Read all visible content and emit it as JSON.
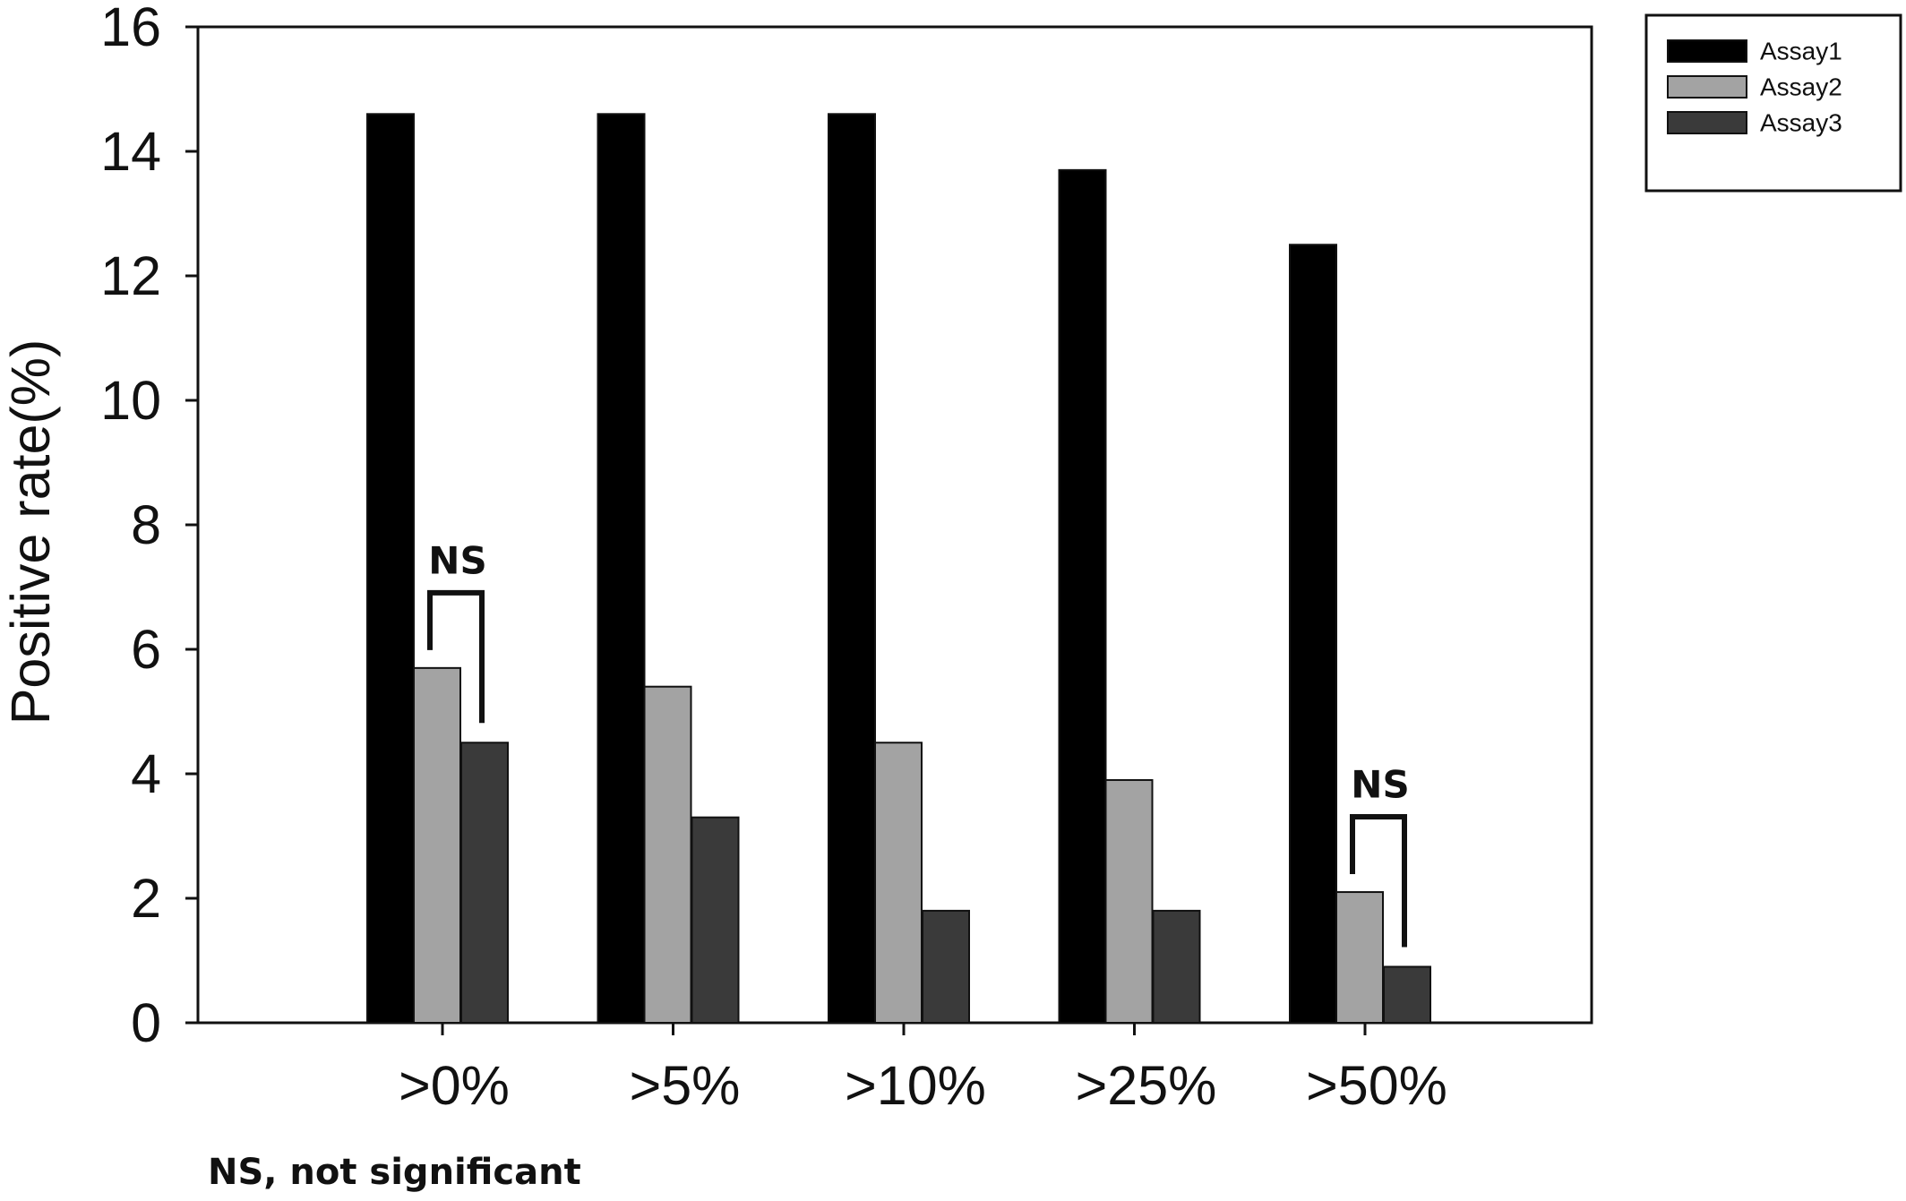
{
  "chart_data": {
    "type": "bar",
    "title": "",
    "xlabel": "",
    "ylabel": "Positive rate(%)",
    "ylim": [
      0,
      16
    ],
    "yticks": [
      0,
      2,
      4,
      6,
      8,
      10,
      12,
      14,
      16
    ],
    "categories": [
      ">0%",
      ">5%",
      ">10%",
      ">25%",
      ">50%"
    ],
    "series": [
      {
        "name": "Assay1",
        "color": "#000000",
        "values": [
          14.6,
          14.6,
          14.6,
          13.7,
          12.5
        ]
      },
      {
        "name": "Assay2",
        "color": "#a3a3a3",
        "values": [
          5.7,
          5.4,
          4.5,
          3.9,
          2.1
        ]
      },
      {
        "name": "Assay3",
        "color": "#3a3a3a",
        "values": [
          4.5,
          3.3,
          1.8,
          1.8,
          0.9
        ]
      }
    ],
    "legend_position": "top-right",
    "grid": false,
    "annotations": [
      {
        "text": "NS",
        "category_index": 0,
        "series": [
          "Assay2",
          "Assay3"
        ]
      },
      {
        "text": "NS",
        "category_index": 4,
        "series": [
          "Assay2",
          "Assay3"
        ]
      }
    ],
    "footnote": "NS, not significant"
  }
}
